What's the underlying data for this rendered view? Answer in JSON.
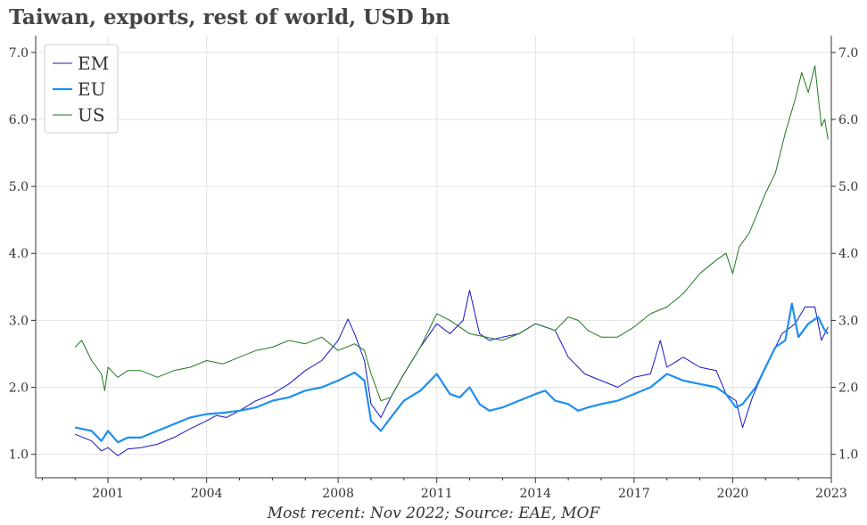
{
  "title": "Taiwan, exports, rest of world, USD bn",
  "caption": "Most recent: Nov 2022; Source: EAE, MOF",
  "chart_data": {
    "type": "line",
    "title": "Taiwan, exports, rest of world, USD bn",
    "xlim": [
      1998.8,
      2023.0
    ],
    "ylim": [
      0.65,
      7.25
    ],
    "x_ticks": [
      2001,
      2004,
      2008,
      2011,
      2014,
      2017,
      2020,
      2023
    ],
    "y_ticks": [
      1.0,
      2.0,
      3.0,
      4.0,
      5.0,
      6.0,
      7.0
    ],
    "y_tick_labels": [
      "1.0",
      "2.0",
      "3.0",
      "4.0",
      "5.0",
      "6.0",
      "7.0"
    ],
    "grid": true,
    "legend_position": "top-left",
    "series": [
      {
        "name": "EM",
        "color": "#1515c8",
        "width": 1,
        "points": [
          [
            2000.0,
            1.3
          ],
          [
            2000.5,
            1.2
          ],
          [
            2000.8,
            1.05
          ],
          [
            2001.0,
            1.1
          ],
          [
            2001.3,
            0.98
          ],
          [
            2001.6,
            1.08
          ],
          [
            2002.0,
            1.1
          ],
          [
            2002.5,
            1.15
          ],
          [
            2003.0,
            1.25
          ],
          [
            2003.5,
            1.38
          ],
          [
            2004.0,
            1.5
          ],
          [
            2004.3,
            1.58
          ],
          [
            2004.6,
            1.55
          ],
          [
            2005.0,
            1.65
          ],
          [
            2005.5,
            1.8
          ],
          [
            2006.0,
            1.9
          ],
          [
            2006.5,
            2.05
          ],
          [
            2007.0,
            2.25
          ],
          [
            2007.5,
            2.4
          ],
          [
            2008.0,
            2.7
          ],
          [
            2008.3,
            3.02
          ],
          [
            2008.5,
            2.8
          ],
          [
            2008.8,
            2.4
          ],
          [
            2009.0,
            1.75
          ],
          [
            2009.3,
            1.55
          ],
          [
            2009.6,
            1.85
          ],
          [
            2010.0,
            2.2
          ],
          [
            2010.5,
            2.6
          ],
          [
            2011.0,
            2.95
          ],
          [
            2011.4,
            2.8
          ],
          [
            2011.8,
            3.0
          ],
          [
            2012.0,
            3.45
          ],
          [
            2012.3,
            2.8
          ],
          [
            2012.6,
            2.7
          ],
          [
            2013.0,
            2.75
          ],
          [
            2013.5,
            2.8
          ],
          [
            2014.0,
            2.95
          ],
          [
            2014.3,
            2.9
          ],
          [
            2014.6,
            2.85
          ],
          [
            2015.0,
            2.45
          ],
          [
            2015.5,
            2.2
          ],
          [
            2016.0,
            2.1
          ],
          [
            2016.5,
            2.0
          ],
          [
            2017.0,
            2.15
          ],
          [
            2017.5,
            2.2
          ],
          [
            2017.8,
            2.7
          ],
          [
            2018.0,
            2.3
          ],
          [
            2018.5,
            2.45
          ],
          [
            2019.0,
            2.3
          ],
          [
            2019.5,
            2.25
          ],
          [
            2019.8,
            1.9
          ],
          [
            2020.1,
            1.8
          ],
          [
            2020.3,
            1.4
          ],
          [
            2020.6,
            1.85
          ],
          [
            2021.0,
            2.3
          ],
          [
            2021.5,
            2.8
          ],
          [
            2021.9,
            2.95
          ],
          [
            2022.2,
            3.2
          ],
          [
            2022.5,
            3.2
          ],
          [
            2022.7,
            2.7
          ],
          [
            2022.9,
            2.9
          ]
        ]
      },
      {
        "name": "EU",
        "color": "#1e8ef0",
        "width": 2.2,
        "points": [
          [
            2000.0,
            1.4
          ],
          [
            2000.5,
            1.35
          ],
          [
            2000.8,
            1.2
          ],
          [
            2001.0,
            1.35
          ],
          [
            2001.3,
            1.18
          ],
          [
            2001.6,
            1.25
          ],
          [
            2002.0,
            1.25
          ],
          [
            2002.5,
            1.35
          ],
          [
            2003.0,
            1.45
          ],
          [
            2003.5,
            1.55
          ],
          [
            2004.0,
            1.6
          ],
          [
            2004.5,
            1.62
          ],
          [
            2005.0,
            1.65
          ],
          [
            2005.5,
            1.7
          ],
          [
            2006.0,
            1.8
          ],
          [
            2006.5,
            1.85
          ],
          [
            2007.0,
            1.95
          ],
          [
            2007.5,
            2.0
          ],
          [
            2008.0,
            2.1
          ],
          [
            2008.5,
            2.22
          ],
          [
            2008.8,
            2.1
          ],
          [
            2009.0,
            1.5
          ],
          [
            2009.3,
            1.35
          ],
          [
            2009.6,
            1.55
          ],
          [
            2010.0,
            1.8
          ],
          [
            2010.5,
            1.95
          ],
          [
            2011.0,
            2.2
          ],
          [
            2011.4,
            1.9
          ],
          [
            2011.7,
            1.85
          ],
          [
            2012.0,
            2.0
          ],
          [
            2012.3,
            1.75
          ],
          [
            2012.6,
            1.65
          ],
          [
            2013.0,
            1.7
          ],
          [
            2013.5,
            1.8
          ],
          [
            2014.0,
            1.9
          ],
          [
            2014.3,
            1.95
          ],
          [
            2014.6,
            1.8
          ],
          [
            2015.0,
            1.75
          ],
          [
            2015.3,
            1.65
          ],
          [
            2015.6,
            1.7
          ],
          [
            2016.0,
            1.75
          ],
          [
            2016.5,
            1.8
          ],
          [
            2017.0,
            1.9
          ],
          [
            2017.5,
            2.0
          ],
          [
            2018.0,
            2.2
          ],
          [
            2018.5,
            2.1
          ],
          [
            2019.0,
            2.05
          ],
          [
            2019.5,
            2.0
          ],
          [
            2019.8,
            1.9
          ],
          [
            2020.1,
            1.7
          ],
          [
            2020.3,
            1.75
          ],
          [
            2020.7,
            2.0
          ],
          [
            2021.0,
            2.3
          ],
          [
            2021.3,
            2.6
          ],
          [
            2021.6,
            2.7
          ],
          [
            2021.8,
            3.25
          ],
          [
            2022.0,
            2.75
          ],
          [
            2022.3,
            2.95
          ],
          [
            2022.6,
            3.05
          ],
          [
            2022.8,
            2.85
          ],
          [
            2022.9,
            2.8
          ]
        ]
      },
      {
        "name": "US",
        "color": "#1e7a1e",
        "width": 1,
        "points": [
          [
            2000.0,
            2.6
          ],
          [
            2000.2,
            2.7
          ],
          [
            2000.5,
            2.4
          ],
          [
            2000.8,
            2.2
          ],
          [
            2000.9,
            1.95
          ],
          [
            2001.0,
            2.3
          ],
          [
            2001.3,
            2.15
          ],
          [
            2001.6,
            2.25
          ],
          [
            2002.0,
            2.25
          ],
          [
            2002.5,
            2.15
          ],
          [
            2003.0,
            2.25
          ],
          [
            2003.5,
            2.3
          ],
          [
            2004.0,
            2.4
          ],
          [
            2004.5,
            2.35
          ],
          [
            2005.0,
            2.45
          ],
          [
            2005.5,
            2.55
          ],
          [
            2006.0,
            2.6
          ],
          [
            2006.5,
            2.7
          ],
          [
            2007.0,
            2.65
          ],
          [
            2007.5,
            2.75
          ],
          [
            2008.0,
            2.55
          ],
          [
            2008.5,
            2.65
          ],
          [
            2008.8,
            2.55
          ],
          [
            2009.0,
            2.2
          ],
          [
            2009.3,
            1.8
          ],
          [
            2009.6,
            1.85
          ],
          [
            2010.0,
            2.2
          ],
          [
            2010.5,
            2.6
          ],
          [
            2011.0,
            3.1
          ],
          [
            2011.4,
            3.0
          ],
          [
            2011.7,
            2.9
          ],
          [
            2012.0,
            2.8
          ],
          [
            2012.5,
            2.75
          ],
          [
            2013.0,
            2.7
          ],
          [
            2013.5,
            2.8
          ],
          [
            2014.0,
            2.95
          ],
          [
            2014.3,
            2.9
          ],
          [
            2014.6,
            2.85
          ],
          [
            2015.0,
            3.05
          ],
          [
            2015.3,
            3.0
          ],
          [
            2015.6,
            2.85
          ],
          [
            2016.0,
            2.75
          ],
          [
            2016.5,
            2.75
          ],
          [
            2017.0,
            2.9
          ],
          [
            2017.5,
            3.1
          ],
          [
            2018.0,
            3.2
          ],
          [
            2018.5,
            3.4
          ],
          [
            2019.0,
            3.7
          ],
          [
            2019.5,
            3.9
          ],
          [
            2019.8,
            4.0
          ],
          [
            2020.0,
            3.7
          ],
          [
            2020.2,
            4.1
          ],
          [
            2020.5,
            4.3
          ],
          [
            2021.0,
            4.9
          ],
          [
            2021.3,
            5.2
          ],
          [
            2021.6,
            5.8
          ],
          [
            2021.9,
            6.3
          ],
          [
            2022.1,
            6.7
          ],
          [
            2022.3,
            6.4
          ],
          [
            2022.5,
            6.8
          ],
          [
            2022.7,
            5.9
          ],
          [
            2022.8,
            6.0
          ],
          [
            2022.9,
            5.7
          ]
        ]
      }
    ]
  }
}
